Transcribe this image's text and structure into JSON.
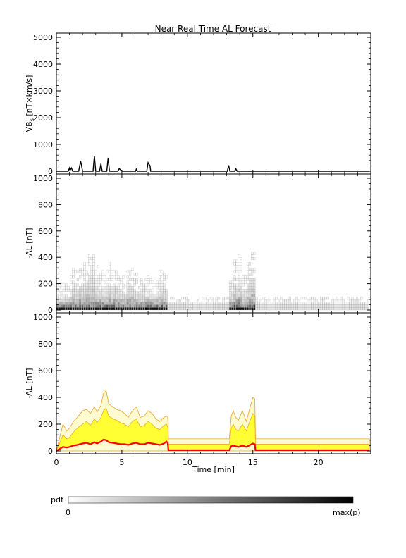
{
  "figure": {
    "title": "Near Real Time AL Forecast",
    "xlabel": "Time [min]"
  },
  "colorbar": {
    "label": "pdf",
    "min_label": "0",
    "max_label": "max(p)"
  },
  "colors": {
    "vbs_line": "#000000",
    "median_line": "#ff0000",
    "envelope_fill": "#ffff33",
    "envelope_edge": "#e8a020",
    "faint_fill": "#fff6c8"
  },
  "chart_data": [
    {
      "type": "line",
      "panel": "top",
      "ylabel_main": "VB",
      "ylabel_sub": "s",
      "ylabel_unit": " [nT×km/s]",
      "xlim": [
        0,
        24
      ],
      "ylim": [
        0,
        5000
      ],
      "yticks": [
        0,
        1000,
        2000,
        3000,
        4000,
        5000
      ],
      "x": [
        0,
        0.9,
        1.0,
        1.05,
        1.15,
        1.25,
        1.7,
        1.85,
        2.0,
        2.1,
        2.8,
        2.9,
        3.0,
        3.3,
        3.4,
        3.5,
        3.85,
        3.95,
        4.05,
        4.7,
        4.8,
        4.9,
        5.05,
        6.05,
        6.1,
        6.2,
        6.9,
        7.0,
        7.05,
        7.15,
        7.2,
        13.05,
        13.15,
        13.25,
        13.6,
        13.7,
        13.8,
        23.9
      ],
      "values": [
        0,
        0,
        120,
        40,
        120,
        0,
        0,
        380,
        0,
        0,
        0,
        580,
        0,
        0,
        280,
        0,
        0,
        500,
        0,
        0,
        100,
        50,
        0,
        0,
        80,
        0,
        0,
        320,
        280,
        200,
        0,
        0,
        220,
        0,
        0,
        90,
        0,
        0
      ]
    },
    {
      "type": "heatmap",
      "panel": "middle",
      "ylabel": "-AL [nT]",
      "xlim": [
        0,
        24
      ],
      "ylim": [
        0,
        1000
      ],
      "yticks": [
        0,
        200,
        400,
        600,
        800,
        1000
      ],
      "columns": [
        {
          "x": [
            0,
            8.5
          ],
          "max": [
            200,
            210,
            200,
            180,
            260,
            320,
            300,
            340,
            360,
            380,
            450,
            420,
            330,
            300,
            290,
            320,
            360,
            340,
            300,
            280,
            250,
            230,
            310,
            320,
            300,
            270,
            240,
            250,
            260,
            240,
            220,
            250,
            290,
            280,
            250
          ]
        },
        {
          "x": [
            8.5,
            13.2
          ],
          "max": [
            100
          ]
        },
        {
          "x": [
            13.2,
            15.2
          ],
          "max": [
            250,
            380,
            420,
            260,
            350,
            440
          ]
        },
        {
          "x": [
            15.2,
            23.9
          ],
          "max": [
            100
          ]
        }
      ]
    },
    {
      "type": "area",
      "panel": "bottom",
      "ylabel": "-AL [nT]",
      "xlim": [
        0,
        24
      ],
      "ylim": [
        0,
        1000
      ],
      "yticks": [
        0,
        200,
        400,
        600,
        800,
        1000
      ],
      "xticks": [
        0,
        5,
        10,
        15,
        20
      ],
      "x": [
        0,
        0.5,
        0.8,
        1.0,
        1.3,
        1.6,
        2.0,
        2.3,
        2.6,
        2.9,
        3.1,
        3.4,
        3.6,
        3.8,
        4.0,
        4.3,
        4.6,
        4.9,
        5.2,
        5.5,
        5.8,
        6.1,
        6.4,
        6.7,
        7.0,
        7.3,
        7.6,
        7.9,
        8.2,
        8.4,
        8.5,
        8.55,
        13.2,
        13.35,
        13.5,
        13.7,
        13.9,
        14.2,
        14.5,
        14.8,
        15.0,
        15.15,
        15.2,
        23.9
      ],
      "upper": [
        0,
        200,
        150,
        170,
        220,
        250,
        300,
        310,
        280,
        330,
        290,
        340,
        430,
        450,
        350,
        330,
        310,
        300,
        280,
        250,
        300,
        330,
        250,
        260,
        300,
        280,
        240,
        220,
        250,
        260,
        250,
        90,
        90,
        260,
        300,
        250,
        230,
        300,
        220,
        330,
        400,
        390,
        90,
        90
      ],
      "band": [
        0,
        120,
        90,
        100,
        140,
        170,
        200,
        220,
        190,
        240,
        210,
        250,
        300,
        320,
        260,
        240,
        230,
        210,
        200,
        180,
        220,
        240,
        180,
        190,
        220,
        200,
        170,
        160,
        190,
        200,
        180,
        50,
        50,
        170,
        200,
        160,
        150,
        200,
        150,
        230,
        280,
        260,
        50,
        50
      ],
      "median": [
        0,
        30,
        25,
        30,
        40,
        45,
        55,
        60,
        50,
        65,
        55,
        70,
        85,
        80,
        65,
        60,
        55,
        50,
        50,
        45,
        55,
        60,
        50,
        50,
        60,
        55,
        50,
        45,
        55,
        70,
        60,
        5,
        5,
        35,
        40,
        35,
        30,
        40,
        30,
        45,
        55,
        50,
        5,
        5
      ]
    }
  ]
}
